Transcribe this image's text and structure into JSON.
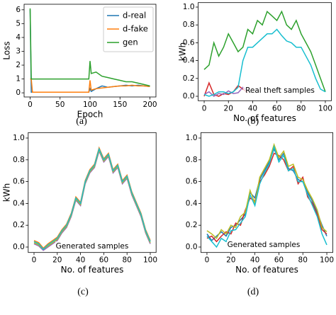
{
  "chart_data": [
    {
      "type": "line",
      "label": "(a)",
      "xlabel": "Epoch",
      "ylabel": "Loss",
      "x": [
        0,
        2,
        4,
        50,
        98,
        100,
        102,
        110,
        120,
        130,
        140,
        150,
        160,
        170,
        180,
        190,
        200
      ],
      "series": [
        {
          "name": "d-real",
          "color": "#1f77b4",
          "values": [
            6.0,
            0.05,
            0.05,
            0.05,
            0.05,
            0.3,
            0.1,
            0.3,
            0.5,
            0.4,
            0.45,
            0.5,
            0.55,
            0.5,
            0.55,
            0.5,
            0.45
          ]
        },
        {
          "name": "d-fake",
          "color": "#ff7f0e",
          "values": [
            1.0,
            1.0,
            0.05,
            0.05,
            0.05,
            0.9,
            0.2,
            0.3,
            0.35,
            0.4,
            0.45,
            0.5,
            0.5,
            0.55,
            0.5,
            0.5,
            0.45
          ]
        },
        {
          "name": "gen",
          "color": "#2ca02c",
          "values": [
            6.1,
            1.0,
            1.0,
            1.0,
            1.0,
            2.3,
            1.4,
            1.5,
            1.2,
            1.1,
            1.0,
            0.9,
            0.8,
            0.8,
            0.7,
            0.6,
            0.5
          ]
        }
      ],
      "xlim": [
        -10,
        210
      ],
      "ylim": [
        -0.3,
        6.4
      ],
      "xticks": [
        0,
        50,
        100,
        150,
        200
      ],
      "yticks": [
        0,
        1,
        2,
        3,
        4,
        5,
        6
      ],
      "legend": "upper right"
    },
    {
      "type": "line",
      "label": "(b)",
      "xlabel": "No. of features",
      "ylabel": "kWh",
      "annotation": "Real theft samples",
      "x": [
        0,
        4,
        8,
        12,
        16,
        20,
        24,
        28,
        32,
        36,
        40,
        44,
        48,
        52,
        56,
        60,
        64,
        68,
        72,
        76,
        80,
        84,
        88,
        92,
        96,
        100
      ],
      "series": [
        {
          "color": "#2ca02c",
          "values": [
            0.3,
            0.35,
            0.6,
            0.45,
            0.55,
            0.7,
            0.6,
            0.5,
            0.55,
            0.75,
            0.7,
            0.85,
            0.8,
            0.95,
            0.9,
            0.85,
            0.95,
            0.8,
            0.75,
            0.85,
            0.7,
            0.6,
            0.5,
            0.35,
            0.2,
            0.05
          ]
        },
        {
          "color": "#d62728",
          "values": [
            0.0,
            0.15,
            0.02,
            0.0,
            0.03,
            0.02,
            0.05,
            0.12,
            0.08,
            0.04,
            null,
            null,
            null,
            null,
            null,
            null,
            null,
            null,
            null,
            null,
            null,
            null,
            null,
            null,
            null,
            null
          ]
        },
        {
          "color": "#9467bd",
          "values": [
            0.02,
            0.05,
            0.0,
            0.03,
            0.02,
            0.06,
            0.03,
            0.04,
            0.1,
            0.06,
            null,
            null,
            null,
            null,
            null,
            null,
            null,
            null,
            null,
            null,
            null,
            null,
            null,
            null,
            null,
            null
          ]
        },
        {
          "color": "#17becf",
          "values": [
            0.02,
            0.0,
            0.02,
            0.05,
            0.05,
            0.03,
            0.05,
            0.1,
            0.4,
            0.55,
            0.55,
            0.6,
            0.65,
            0.7,
            0.7,
            0.75,
            0.68,
            0.62,
            0.6,
            0.55,
            0.55,
            0.45,
            0.35,
            0.2,
            0.08,
            0.05
          ]
        }
      ],
      "xlim": [
        -5,
        105
      ],
      "ylim": [
        -0.05,
        1.05
      ],
      "xticks": [
        0,
        20,
        40,
        60,
        80,
        100
      ],
      "yticks": [
        {
          "value": 0,
          "label": "0.0"
        },
        0.2,
        0.4,
        0.6,
        0.8,
        {
          "value": 1,
          "label": "1.0"
        }
      ]
    },
    {
      "type": "line",
      "label": "(c)",
      "xlabel": "No. of features",
      "ylabel": "kWh",
      "annotation": "Generated samples",
      "x": [
        0,
        4,
        8,
        12,
        16,
        20,
        24,
        28,
        32,
        36,
        40,
        44,
        48,
        52,
        56,
        60,
        64,
        68,
        72,
        76,
        80,
        84,
        88,
        92,
        96,
        100
      ],
      "series": [
        {
          "color": "#9467bd",
          "values": [
            0.03,
            0.01,
            -0.03,
            0.0,
            0.03,
            0.06,
            0.13,
            0.18,
            0.28,
            0.43,
            0.38,
            0.58,
            0.68,
            0.73,
            0.88,
            0.78,
            0.83,
            0.68,
            0.73,
            0.58,
            0.63,
            0.48,
            0.38,
            0.28,
            0.13,
            0.03
          ]
        },
        {
          "color": "#ff7f0e",
          "values": [
            0.06,
            0.04,
            -0.01,
            0.03,
            0.06,
            0.09,
            0.16,
            0.21,
            0.31,
            0.46,
            0.41,
            0.61,
            0.71,
            0.76,
            0.91,
            0.81,
            0.86,
            0.71,
            0.76,
            0.61,
            0.66,
            0.51,
            0.41,
            0.31,
            0.16,
            0.06
          ]
        },
        {
          "color": "#bcbd22",
          "values": [
            0.04,
            0.02,
            -0.02,
            0.01,
            0.04,
            0.07,
            0.14,
            0.19,
            0.29,
            0.44,
            0.39,
            0.59,
            0.69,
            0.74,
            0.89,
            0.79,
            0.84,
            0.69,
            0.74,
            0.59,
            0.64,
            0.49,
            0.39,
            0.29,
            0.14,
            0.04
          ]
        },
        {
          "color": "#17becf",
          "values": [
            0.05,
            0.03,
            -0.02,
            0.02,
            0.05,
            0.08,
            0.15,
            0.2,
            0.3,
            0.45,
            0.4,
            0.6,
            0.7,
            0.75,
            0.9,
            0.8,
            0.85,
            0.7,
            0.75,
            0.6,
            0.65,
            0.5,
            0.4,
            0.3,
            0.15,
            0.05
          ]
        }
      ],
      "xlim": [
        -5,
        105
      ],
      "ylim": [
        -0.05,
        1.05
      ],
      "xticks": [
        0,
        20,
        40,
        60,
        80,
        100
      ],
      "yticks": [
        {
          "value": 0,
          "label": "0.0"
        },
        0.2,
        0.4,
        0.6,
        0.8,
        {
          "value": 1,
          "label": "1.0"
        }
      ]
    },
    {
      "type": "line",
      "label": "(d)",
      "xlabel": "No. of features",
      "annotation": "Generated samples",
      "x": [
        0,
        4,
        8,
        12,
        16,
        20,
        24,
        28,
        32,
        36,
        40,
        44,
        48,
        52,
        56,
        60,
        64,
        68,
        72,
        76,
        80,
        84,
        88,
        92,
        96,
        100
      ],
      "series": [
        {
          "color": "#1f77b4",
          "values": [
            0.12,
            0.06,
            0.1,
            0.14,
            0.1,
            0.18,
            0.2,
            0.25,
            0.3,
            0.5,
            0.45,
            0.62,
            0.7,
            0.78,
            0.9,
            0.8,
            0.86,
            0.72,
            0.7,
            0.62,
            0.6,
            0.5,
            0.42,
            0.32,
            0.2,
            0.1
          ]
        },
        {
          "color": "#d62728",
          "values": [
            0.08,
            0.1,
            0.05,
            0.1,
            0.14,
            0.12,
            0.22,
            0.2,
            0.34,
            0.45,
            0.42,
            0.6,
            0.66,
            0.74,
            0.86,
            0.84,
            0.8,
            0.7,
            0.74,
            0.58,
            0.64,
            0.46,
            0.4,
            0.3,
            0.16,
            0.12
          ]
        },
        {
          "color": "#bcbd22",
          "values": [
            0.15,
            0.12,
            0.08,
            0.16,
            0.12,
            0.2,
            0.18,
            0.28,
            0.32,
            0.52,
            0.4,
            0.64,
            0.72,
            0.8,
            0.94,
            0.82,
            0.88,
            0.74,
            0.76,
            0.64,
            0.62,
            0.52,
            0.44,
            0.34,
            0.18,
            0.14
          ]
        },
        {
          "color": "#17becf",
          "values": [
            0.1,
            0.05,
            0.0,
            0.08,
            0.05,
            0.15,
            0.16,
            0.22,
            0.28,
            0.48,
            0.38,
            0.58,
            0.68,
            0.76,
            0.92,
            0.78,
            0.84,
            0.7,
            0.72,
            0.6,
            0.6,
            0.48,
            0.38,
            0.28,
            0.12,
            0.02
          ]
        }
      ],
      "xlim": [
        -5,
        105
      ],
      "ylim": [
        -0.05,
        1.05
      ],
      "xticks": [
        0,
        20,
        40,
        60,
        80,
        100
      ],
      "yticks": [
        {
          "value": 0,
          "label": "0.0"
        },
        0.2,
        0.4,
        0.6,
        0.8,
        {
          "value": 1,
          "label": "1.0"
        }
      ]
    }
  ]
}
